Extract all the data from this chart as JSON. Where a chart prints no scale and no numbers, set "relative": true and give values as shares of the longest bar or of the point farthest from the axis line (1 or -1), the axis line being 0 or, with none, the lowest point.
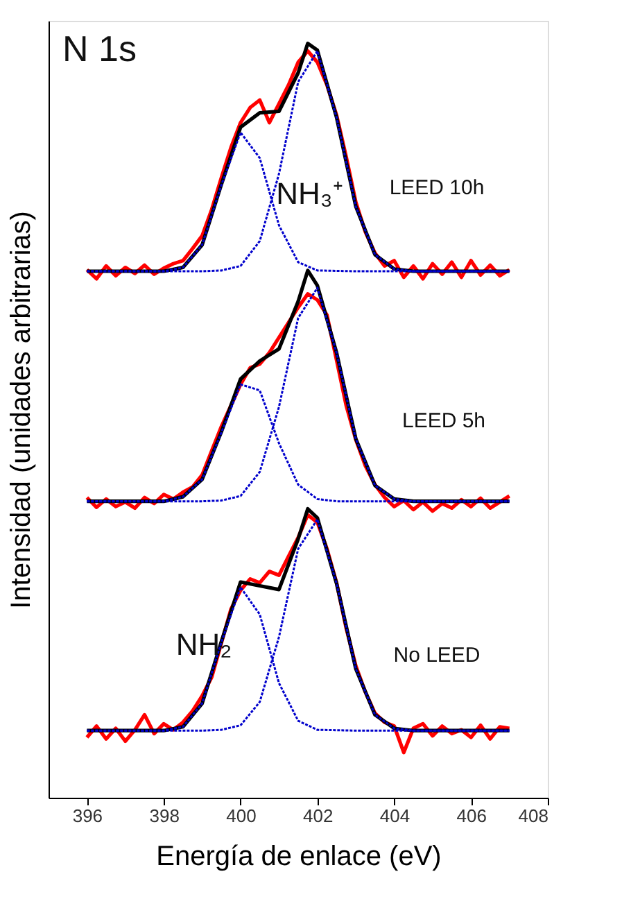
{
  "chart_data": {
    "type": "line",
    "relative": true,
    "xlabel": "Energía de enlace (eV)",
    "ylabel": "Intensidad (unidades arbitrarias)",
    "xlim": [
      395,
      408
    ],
    "xticks": [
      396,
      398,
      400,
      402,
      404,
      406,
      408
    ],
    "grid": false,
    "marker": "none",
    "tick_labels": "x",
    "annotations": [
      "N 1s",
      "LEED 10h",
      "NH₃⁺",
      "LEED 5h",
      "No LEED",
      "NH₂"
    ],
    "series": [
      {
        "color": "#ff0000",
        "line_style": "solid",
        "x": [
          396,
          396.25,
          396.5,
          396.75,
          397,
          397.25,
          397.5,
          397.75,
          398,
          398.25,
          398.5,
          398.75,
          399,
          399.25,
          399.5,
          399.75,
          400,
          400.25,
          400.5,
          400.75,
          401,
          401.25,
          401.5,
          401.75,
          402,
          402.25,
          402.5,
          402.75,
          403,
          403.25,
          403.5,
          403.75,
          404,
          404.25,
          404.5,
          404.75,
          405,
          405.25,
          405.5,
          405.75,
          406,
          406.25,
          406.5,
          406.75,
          407
        ],
        "values": [
          0.7,
          0.688,
          0.705,
          0.692,
          0.703,
          0.695,
          0.706,
          0.694,
          0.702,
          0.708,
          0.712,
          0.728,
          0.745,
          0.78,
          0.822,
          0.862,
          0.895,
          0.915,
          0.925,
          0.895,
          0.92,
          0.945,
          0.975,
          0.99,
          0.975,
          0.945,
          0.905,
          0.85,
          0.79,
          0.75,
          0.722,
          0.705,
          0.712,
          0.69,
          0.705,
          0.688,
          0.708,
          0.694,
          0.71,
          0.69,
          0.712,
          0.693,
          0.706,
          0.692,
          0.7
        ]
      },
      {
        "color": "#0000cc",
        "line_style": "dotted",
        "x": [
          396,
          397,
          398,
          398.5,
          399,
          399.5,
          400,
          400.5,
          401,
          401.5,
          402,
          403,
          405,
          407
        ],
        "values": [
          0.698,
          0.698,
          0.698,
          0.703,
          0.733,
          0.812,
          0.882,
          0.848,
          0.759,
          0.71,
          0.699,
          0.698,
          0.698,
          0.698
        ]
      },
      {
        "color": "#0000cc",
        "line_style": "dotted",
        "x": [
          396,
          398,
          399,
          399.5,
          400,
          400.5,
          401,
          401.5,
          402,
          402.5,
          403,
          403.5,
          404,
          404.5,
          405,
          407
        ],
        "values": [
          0.698,
          0.698,
          0.698,
          0.699,
          0.705,
          0.738,
          0.827,
          0.949,
          0.99,
          0.902,
          0.784,
          0.72,
          0.701,
          0.698,
          0.698,
          0.698
        ]
      },
      {
        "color": "#000000",
        "line_style": "solid",
        "x": [
          396,
          397,
          398,
          398.5,
          399,
          399.5,
          400,
          400.5,
          401,
          401.5,
          401.75,
          402,
          402.5,
          403,
          403.5,
          404,
          404.5,
          405,
          406,
          407
        ],
        "values": [
          0.698,
          0.698,
          0.698,
          0.703,
          0.733,
          0.813,
          0.889,
          0.908,
          0.91,
          0.961,
          1.0,
          0.991,
          0.902,
          0.784,
          0.72,
          0.701,
          0.698,
          0.698,
          0.698,
          0.698
        ]
      },
      {
        "color": "#ff0000",
        "line_style": "solid",
        "x": [
          396,
          396.25,
          396.5,
          396.75,
          397,
          397.25,
          397.5,
          397.75,
          398,
          398.25,
          398.5,
          398.75,
          399,
          399.25,
          399.5,
          399.75,
          400,
          400.25,
          400.5,
          400.75,
          401,
          401.25,
          401.5,
          401.75,
          402,
          402.25,
          402.5,
          402.75,
          403,
          403.25,
          403.5,
          403.75,
          404,
          404.25,
          404.5,
          404.75,
          405,
          405.25,
          405.5,
          405.75,
          406,
          406.25,
          406.5,
          406.75,
          407
        ],
        "values": [
          0.398,
          0.385,
          0.396,
          0.386,
          0.392,
          0.384,
          0.398,
          0.39,
          0.402,
          0.396,
          0.405,
          0.412,
          0.428,
          0.46,
          0.492,
          0.52,
          0.548,
          0.57,
          0.575,
          0.59,
          0.61,
          0.63,
          0.65,
          0.668,
          0.66,
          0.64,
          0.58,
          0.52,
          0.475,
          0.44,
          0.415,
          0.398,
          0.386,
          0.394,
          0.382,
          0.392,
          0.38,
          0.39,
          0.384,
          0.395,
          0.386,
          0.397,
          0.384,
          0.392,
          0.4
        ]
      },
      {
        "color": "#0000cc",
        "line_style": "dotted",
        "x": [
          396,
          398,
          398.5,
          399,
          399.5,
          400,
          400.5,
          401,
          401.5,
          402,
          402.5,
          403,
          405,
          407
        ],
        "values": [
          0.393,
          0.393,
          0.399,
          0.422,
          0.484,
          0.548,
          0.54,
          0.47,
          0.415,
          0.396,
          0.393,
          0.393,
          0.393,
          0.393
        ]
      },
      {
        "color": "#0000cc",
        "line_style": "dotted",
        "x": [
          396,
          398,
          399,
          399.5,
          400,
          400.5,
          401,
          401.5,
          402,
          402.5,
          403,
          403.5,
          404,
          404.5,
          405,
          407
        ],
        "values": [
          0.393,
          0.393,
          0.393,
          0.394,
          0.4,
          0.432,
          0.518,
          0.636,
          0.676,
          0.59,
          0.476,
          0.414,
          0.396,
          0.393,
          0.393,
          0.393
        ]
      },
      {
        "color": "#000000",
        "line_style": "solid",
        "x": [
          396,
          397,
          398,
          398.5,
          399,
          399.5,
          400,
          400.5,
          401,
          401.5,
          401.75,
          402,
          402.5,
          403,
          403.5,
          404,
          404.5,
          405,
          406,
          407
        ],
        "values": [
          0.393,
          0.393,
          0.393,
          0.399,
          0.422,
          0.485,
          0.555,
          0.579,
          0.595,
          0.658,
          0.699,
          0.679,
          0.59,
          0.476,
          0.414,
          0.396,
          0.393,
          0.393,
          0.393,
          0.393
        ]
      },
      {
        "color": "#ff0000",
        "line_style": "solid",
        "x": [
          396,
          396.25,
          396.5,
          396.75,
          397,
          397.25,
          397.5,
          397.75,
          398,
          398.25,
          398.5,
          398.75,
          399,
          399.25,
          399.5,
          399.75,
          400,
          400.25,
          400.5,
          400.75,
          401,
          401.25,
          401.5,
          401.75,
          402,
          402.25,
          402.5,
          402.75,
          403,
          403.25,
          403.5,
          403.75,
          404,
          404.25,
          404.5,
          404.75,
          405,
          405.25,
          405.5,
          405.75,
          406,
          406.25,
          406.5,
          406.75,
          407
        ],
        "values": [
          0.08,
          0.095,
          0.078,
          0.092,
          0.075,
          0.09,
          0.11,
          0.085,
          0.098,
          0.09,
          0.1,
          0.115,
          0.135,
          0.16,
          0.205,
          0.25,
          0.275,
          0.29,
          0.285,
          0.3,
          0.295,
          0.32,
          0.345,
          0.375,
          0.365,
          0.33,
          0.285,
          0.225,
          0.175,
          0.14,
          0.112,
          0.1,
          0.095,
          0.06,
          0.092,
          0.098,
          0.082,
          0.095,
          0.085,
          0.09,
          0.08,
          0.096,
          0.078,
          0.094,
          0.092
        ]
      },
      {
        "color": "#0000cc",
        "line_style": "dotted",
        "x": [
          396,
          398,
          398.5,
          399,
          399.5,
          400,
          400.5,
          401,
          401.5,
          402,
          403,
          405,
          407
        ],
        "values": [
          0.089,
          0.089,
          0.094,
          0.125,
          0.206,
          0.279,
          0.243,
          0.152,
          0.102,
          0.09,
          0.089,
          0.089,
          0.089
        ]
      },
      {
        "color": "#0000cc",
        "line_style": "dotted",
        "x": [
          396,
          398,
          399,
          399.5,
          400,
          400.5,
          401,
          401.5,
          402,
          402.5,
          403,
          403.5,
          404,
          404.5,
          405,
          407
        ],
        "values": [
          0.089,
          0.089,
          0.089,
          0.09,
          0.096,
          0.127,
          0.213,
          0.33,
          0.369,
          0.284,
          0.171,
          0.11,
          0.092,
          0.089,
          0.089,
          0.089
        ]
      },
      {
        "color": "#000000",
        "line_style": "solid",
        "x": [
          396,
          397,
          398,
          398.5,
          399,
          399.5,
          400,
          400.5,
          401,
          401.5,
          401.75,
          402,
          402.5,
          403,
          403.5,
          404,
          404.5,
          405,
          406,
          407
        ],
        "values": [
          0.089,
          0.089,
          0.089,
          0.094,
          0.125,
          0.207,
          0.286,
          0.281,
          0.276,
          0.343,
          0.383,
          0.371,
          0.284,
          0.171,
          0.11,
          0.092,
          0.089,
          0.089,
          0.089,
          0.089
        ]
      }
    ]
  }
}
